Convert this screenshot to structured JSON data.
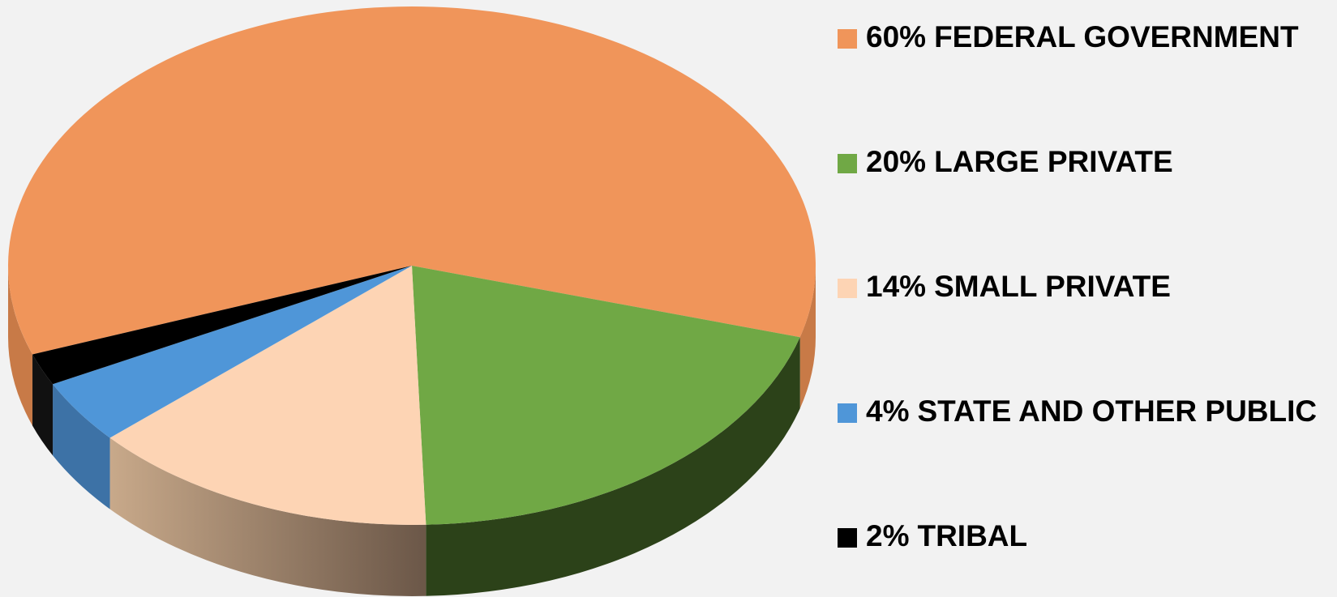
{
  "chart_data": {
    "type": "pie3d",
    "categories": [
      "FEDERAL GOVERNMENT",
      "LARGE PRIVATE",
      "SMALL PRIVATE",
      "STATE AND OTHER PUBLIC",
      "TRIBAL"
    ],
    "values": [
      60,
      20,
      14,
      4,
      2
    ],
    "value_labels": [
      "60%",
      "20%",
      "14%",
      "4%",
      "2%"
    ],
    "colors": [
      "#f0955a",
      "#70a845",
      "#fdd4b4",
      "#4f96d8",
      "#000000"
    ]
  }
}
